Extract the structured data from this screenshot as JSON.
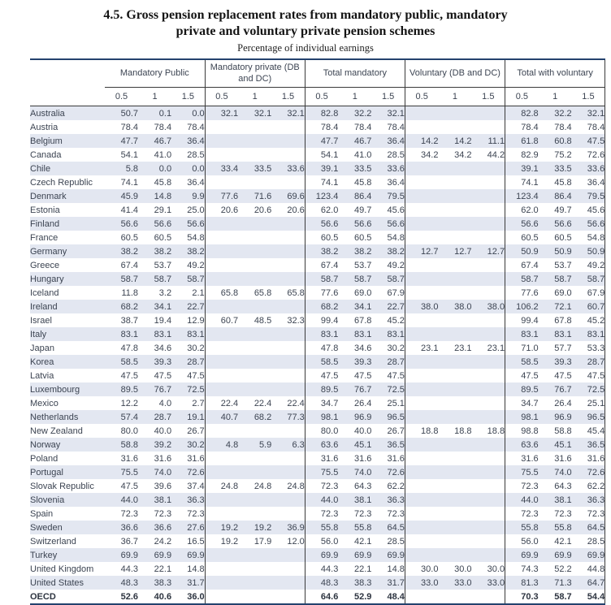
{
  "title_line1": "4.5.  Gross pension replacement rates from mandatory public, mandatory",
  "title_line2": "private and voluntary private pension schemes",
  "subtitle": "Percentage of individual earnings",
  "colors": {
    "rule": "#24426e",
    "grid_line": "#3a3a3a",
    "row_stripe": "#e3e7f1",
    "text": "#3c4452"
  },
  "chart_data": {
    "type": "table",
    "title": "4.5. Gross pension replacement rates from mandatory public, mandatory private and voluntary private pension schemes",
    "subtitle": "Percentage of individual earnings",
    "column_groups": [
      {
        "label": "Mandatory Public"
      },
      {
        "label": "Mandatory private (DB and DC)"
      },
      {
        "label": "Total mandatory"
      },
      {
        "label": "Voluntary (DB and DC)"
      },
      {
        "label": "Total with voluntary"
      }
    ],
    "sub_columns": [
      "0.5",
      "1",
      "1.5"
    ],
    "rows": [
      {
        "country": "Australia",
        "bold": false,
        "values": [
          "50.7",
          "0.1",
          "0.0",
          "32.1",
          "32.1",
          "32.1",
          "82.8",
          "32.2",
          "32.1",
          "",
          "",
          "",
          "82.8",
          "32.2",
          "32.1"
        ]
      },
      {
        "country": "Austria",
        "bold": false,
        "values": [
          "78.4",
          "78.4",
          "78.4",
          "",
          "",
          "",
          "78.4",
          "78.4",
          "78.4",
          "",
          "",
          "",
          "78.4",
          "78.4",
          "78.4"
        ]
      },
      {
        "country": "Belgium",
        "bold": false,
        "values": [
          "47.7",
          "46.7",
          "36.4",
          "",
          "",
          "",
          "47.7",
          "46.7",
          "36.4",
          "14.2",
          "14.2",
          "11.1",
          "61.8",
          "60.8",
          "47.5"
        ]
      },
      {
        "country": "Canada",
        "bold": false,
        "values": [
          "54.1",
          "41.0",
          "28.5",
          "",
          "",
          "",
          "54.1",
          "41.0",
          "28.5",
          "34.2",
          "34.2",
          "44.2",
          "82.9",
          "75.2",
          "72.6"
        ]
      },
      {
        "country": "Chile",
        "bold": false,
        "values": [
          "5.8",
          "0.0",
          "0.0",
          "33.4",
          "33.5",
          "33.6",
          "39.1",
          "33.5",
          "33.6",
          "",
          "",
          "",
          "39.1",
          "33.5",
          "33.6"
        ]
      },
      {
        "country": "Czech Republic",
        "bold": false,
        "values": [
          "74.1",
          "45.8",
          "36.4",
          "",
          "",
          "",
          "74.1",
          "45.8",
          "36.4",
          "",
          "",
          "",
          "74.1",
          "45.8",
          "36.4"
        ]
      },
      {
        "country": "Denmark",
        "bold": false,
        "values": [
          "45.9",
          "14.8",
          "9.9",
          "77.6",
          "71.6",
          "69.6",
          "123.4",
          "86.4",
          "79.5",
          "",
          "",
          "",
          "123.4",
          "86.4",
          "79.5"
        ]
      },
      {
        "country": "Estonia",
        "bold": false,
        "values": [
          "41.4",
          "29.1",
          "25.0",
          "20.6",
          "20.6",
          "20.6",
          "62.0",
          "49.7",
          "45.6",
          "",
          "",
          "",
          "62.0",
          "49.7",
          "45.6"
        ]
      },
      {
        "country": "Finland",
        "bold": false,
        "values": [
          "56.6",
          "56.6",
          "56.6",
          "",
          "",
          "",
          "56.6",
          "56.6",
          "56.6",
          "",
          "",
          "",
          "56.6",
          "56.6",
          "56.6"
        ]
      },
      {
        "country": "France",
        "bold": false,
        "values": [
          "60.5",
          "60.5",
          "54.8",
          "",
          "",
          "",
          "60.5",
          "60.5",
          "54.8",
          "",
          "",
          "",
          "60.5",
          "60.5",
          "54.8"
        ]
      },
      {
        "country": "Germany",
        "bold": false,
        "values": [
          "38.2",
          "38.2",
          "38.2",
          "",
          "",
          "",
          "38.2",
          "38.2",
          "38.2",
          "12.7",
          "12.7",
          "12.7",
          "50.9",
          "50.9",
          "50.9"
        ]
      },
      {
        "country": "Greece",
        "bold": false,
        "values": [
          "67.4",
          "53.7",
          "49.2",
          "",
          "",
          "",
          "67.4",
          "53.7",
          "49.2",
          "",
          "",
          "",
          "67.4",
          "53.7",
          "49.2"
        ]
      },
      {
        "country": "Hungary",
        "bold": false,
        "values": [
          "58.7",
          "58.7",
          "58.7",
          "",
          "",
          "",
          "58.7",
          "58.7",
          "58.7",
          "",
          "",
          "",
          "58.7",
          "58.7",
          "58.7"
        ]
      },
      {
        "country": "Iceland",
        "bold": false,
        "values": [
          "11.8",
          "3.2",
          "2.1",
          "65.8",
          "65.8",
          "65.8",
          "77.6",
          "69.0",
          "67.9",
          "",
          "",
          "",
          "77.6",
          "69.0",
          "67.9"
        ]
      },
      {
        "country": "Ireland",
        "bold": false,
        "values": [
          "68.2",
          "34.1",
          "22.7",
          "",
          "",
          "",
          "68.2",
          "34.1",
          "22.7",
          "38.0",
          "38.0",
          "38.0",
          "106.2",
          "72.1",
          "60.7"
        ]
      },
      {
        "country": "Israel",
        "bold": false,
        "values": [
          "38.7",
          "19.4",
          "12.9",
          "60.7",
          "48.5",
          "32.3",
          "99.4",
          "67.8",
          "45.2",
          "",
          "",
          "",
          "99.4",
          "67.8",
          "45.2"
        ]
      },
      {
        "country": "Italy",
        "bold": false,
        "values": [
          "83.1",
          "83.1",
          "83.1",
          "",
          "",
          "",
          "83.1",
          "83.1",
          "83.1",
          "",
          "",
          "",
          "83.1",
          "83.1",
          "83.1"
        ]
      },
      {
        "country": "Japan",
        "bold": false,
        "values": [
          "47.8",
          "34.6",
          "30.2",
          "",
          "",
          "",
          "47.8",
          "34.6",
          "30.2",
          "23.1",
          "23.1",
          "23.1",
          "71.0",
          "57.7",
          "53.3"
        ]
      },
      {
        "country": "Korea",
        "bold": false,
        "values": [
          "58.5",
          "39.3",
          "28.7",
          "",
          "",
          "",
          "58.5",
          "39.3",
          "28.7",
          "",
          "",
          "",
          "58.5",
          "39.3",
          "28.7"
        ]
      },
      {
        "country": "Latvia",
        "bold": false,
        "values": [
          "47.5",
          "47.5",
          "47.5",
          "",
          "",
          "",
          "47.5",
          "47.5",
          "47.5",
          "",
          "",
          "",
          "47.5",
          "47.5",
          "47.5"
        ]
      },
      {
        "country": "Luxembourg",
        "bold": false,
        "values": [
          "89.5",
          "76.7",
          "72.5",
          "",
          "",
          "",
          "89.5",
          "76.7",
          "72.5",
          "",
          "",
          "",
          "89.5",
          "76.7",
          "72.5"
        ]
      },
      {
        "country": "Mexico",
        "bold": false,
        "values": [
          "12.2",
          "4.0",
          "2.7",
          "22.4",
          "22.4",
          "22.4",
          "34.7",
          "26.4",
          "25.1",
          "",
          "",
          "",
          "34.7",
          "26.4",
          "25.1"
        ]
      },
      {
        "country": "Netherlands",
        "bold": false,
        "values": [
          "57.4",
          "28.7",
          "19.1",
          "40.7",
          "68.2",
          "77.3",
          "98.1",
          "96.9",
          "96.5",
          "",
          "",
          "",
          "98.1",
          "96.9",
          "96.5"
        ]
      },
      {
        "country": "New Zealand",
        "bold": false,
        "values": [
          "80.0",
          "40.0",
          "26.7",
          "",
          "",
          "",
          "80.0",
          "40.0",
          "26.7",
          "18.8",
          "18.8",
          "18.8",
          "98.8",
          "58.8",
          "45.4"
        ]
      },
      {
        "country": "Norway",
        "bold": false,
        "values": [
          "58.8",
          "39.2",
          "30.2",
          "4.8",
          "5.9",
          "6.3",
          "63.6",
          "45.1",
          "36.5",
          "",
          "",
          "",
          "63.6",
          "45.1",
          "36.5"
        ]
      },
      {
        "country": "Poland",
        "bold": false,
        "values": [
          "31.6",
          "31.6",
          "31.6",
          "",
          "",
          "",
          "31.6",
          "31.6",
          "31.6",
          "",
          "",
          "",
          "31.6",
          "31.6",
          "31.6"
        ]
      },
      {
        "country": "Portugal",
        "bold": false,
        "values": [
          "75.5",
          "74.0",
          "72.6",
          "",
          "",
          "",
          "75.5",
          "74.0",
          "72.6",
          "",
          "",
          "",
          "75.5",
          "74.0",
          "72.6"
        ]
      },
      {
        "country": "Slovak Republic",
        "bold": false,
        "values": [
          "47.5",
          "39.6",
          "37.4",
          "24.8",
          "24.8",
          "24.8",
          "72.3",
          "64.3",
          "62.2",
          "",
          "",
          "",
          "72.3",
          "64.3",
          "62.2"
        ]
      },
      {
        "country": "Slovenia",
        "bold": false,
        "values": [
          "44.0",
          "38.1",
          "36.3",
          "",
          "",
          "",
          "44.0",
          "38.1",
          "36.3",
          "",
          "",
          "",
          "44.0",
          "38.1",
          "36.3"
        ]
      },
      {
        "country": "Spain",
        "bold": false,
        "values": [
          "72.3",
          "72.3",
          "72.3",
          "",
          "",
          "",
          "72.3",
          "72.3",
          "72.3",
          "",
          "",
          "",
          "72.3",
          "72.3",
          "72.3"
        ]
      },
      {
        "country": "Sweden",
        "bold": false,
        "values": [
          "36.6",
          "36.6",
          "27.6",
          "19.2",
          "19.2",
          "36.9",
          "55.8",
          "55.8",
          "64.5",
          "",
          "",
          "",
          "55.8",
          "55.8",
          "64.5"
        ]
      },
      {
        "country": "Switzerland",
        "bold": false,
        "values": [
          "36.7",
          "24.2",
          "16.5",
          "19.2",
          "17.9",
          "12.0",
          "56.0",
          "42.1",
          "28.5",
          "",
          "",
          "",
          "56.0",
          "42.1",
          "28.5"
        ]
      },
      {
        "country": "Turkey",
        "bold": false,
        "values": [
          "69.9",
          "69.9",
          "69.9",
          "",
          "",
          "",
          "69.9",
          "69.9",
          "69.9",
          "",
          "",
          "",
          "69.9",
          "69.9",
          "69.9"
        ]
      },
      {
        "country": "United Kingdom",
        "bold": false,
        "values": [
          "44.3",
          "22.1",
          "14.8",
          "",
          "",
          "",
          "44.3",
          "22.1",
          "14.8",
          "30.0",
          "30.0",
          "30.0",
          "74.3",
          "52.2",
          "44.8"
        ]
      },
      {
        "country": "United States",
        "bold": false,
        "values": [
          "48.3",
          "38.3",
          "31.7",
          "",
          "",
          "",
          "48.3",
          "38.3",
          "31.7",
          "33.0",
          "33.0",
          "33.0",
          "81.3",
          "71.3",
          "64.7"
        ]
      },
      {
        "country": "OECD",
        "bold": true,
        "values": [
          "52.6",
          "40.6",
          "36.0",
          "",
          "",
          "",
          "64.6",
          "52.9",
          "48.4",
          "",
          "",
          "",
          "70.3",
          "58.7",
          "54.4"
        ]
      }
    ]
  }
}
